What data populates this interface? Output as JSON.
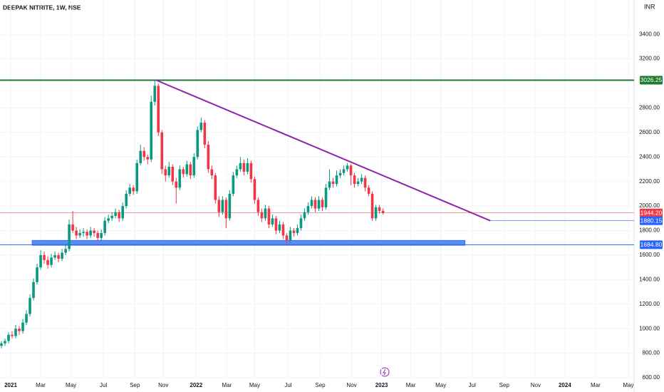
{
  "chart_data": {
    "type": "candlestick",
    "title": "DEEPAK NITRITE, 1W, NSE",
    "currency": "INR",
    "up_color": "#089981",
    "down_color": "#f23645",
    "xlim": [
      -0.4,
      177.4
    ],
    "ylim": [
      600,
      3680
    ],
    "xticks": [
      {
        "value": 2.6,
        "label": "2021"
      },
      {
        "value": 11,
        "label": "Mar"
      },
      {
        "value": 19.5,
        "label": "May"
      },
      {
        "value": 28.6,
        "label": "Jul"
      },
      {
        "value": 37.4,
        "label": "Sep"
      },
      {
        "value": 45.4,
        "label": "Nov"
      },
      {
        "value": 54.6,
        "label": "2022"
      },
      {
        "value": 63.2,
        "label": "Mar"
      },
      {
        "value": 71,
        "label": "May"
      },
      {
        "value": 80.4,
        "label": "Jul"
      },
      {
        "value": 89.4,
        "label": "Sep"
      },
      {
        "value": 98.2,
        "label": "Nov"
      },
      {
        "value": 106.6,
        "label": "2023"
      },
      {
        "value": 114.8,
        "label": "Mar"
      },
      {
        "value": 123.2,
        "label": "May"
      },
      {
        "value": 132,
        "label": "Jul"
      },
      {
        "value": 141,
        "label": "Sep"
      },
      {
        "value": 149.8,
        "label": "Nov"
      },
      {
        "value": 158,
        "label": "2024"
      },
      {
        "value": 166.6,
        "label": "Mar"
      },
      {
        "value": 175.8,
        "label": "May"
      }
    ],
    "yticks": [
      {
        "value": 600,
        "label": "600.00"
      },
      {
        "value": 800,
        "label": "800.00"
      },
      {
        "value": 1000,
        "label": "1000.00"
      },
      {
        "value": 1200,
        "label": "1200.00"
      },
      {
        "value": 1400,
        "label": "1400.00"
      },
      {
        "value": 1600,
        "label": "1600.00"
      },
      {
        "value": 1800,
        "label": "1800.00"
      },
      {
        "value": 2000,
        "label": "2000.00"
      },
      {
        "value": 2200,
        "label": "2200.00"
      },
      {
        "value": 2400,
        "label": "2400.00"
      },
      {
        "value": 2600,
        "label": "2600.00"
      },
      {
        "value": 2800,
        "label": "2800.00"
      },
      {
        "value": 3200,
        "label": "3200.00"
      },
      {
        "value": 3400,
        "label": "3400.00"
      }
    ],
    "ohlc": [
      [
        860,
        900,
        840,
        880
      ],
      [
        880,
        920,
        860,
        900
      ],
      [
        900,
        970,
        880,
        950
      ],
      [
        950,
        980,
        920,
        940
      ],
      [
        940,
        1030,
        920,
        1000
      ],
      [
        1000,
        1020,
        950,
        980
      ],
      [
        980,
        1080,
        960,
        1050
      ],
      [
        1050,
        1150,
        1030,
        1120
      ],
      [
        1120,
        1280,
        1100,
        1250
      ],
      [
        1250,
        1410,
        1230,
        1380
      ],
      [
        1380,
        1530,
        1360,
        1500
      ],
      [
        1500,
        1640,
        1480,
        1600
      ],
      [
        1600,
        1630,
        1530,
        1560
      ],
      [
        1560,
        1590,
        1490,
        1520
      ],
      [
        1520,
        1610,
        1500,
        1580
      ],
      [
        1580,
        1630,
        1560,
        1600
      ],
      [
        1600,
        1620,
        1540,
        1570
      ],
      [
        1570,
        1650,
        1550,
        1620
      ],
      [
        1620,
        1690,
        1600,
        1650
      ],
      [
        1650,
        1890,
        1630,
        1850
      ],
      [
        1850,
        1960,
        1780,
        1800
      ],
      [
        1800,
        1830,
        1730,
        1760
      ],
      [
        1760,
        1810,
        1740,
        1780
      ],
      [
        1780,
        1820,
        1750,
        1790
      ],
      [
        1790,
        1810,
        1730,
        1760
      ],
      [
        1760,
        1830,
        1740,
        1800
      ],
      [
        1800,
        1820,
        1750,
        1780
      ],
      [
        1780,
        1800,
        1710,
        1740
      ],
      [
        1740,
        1810,
        1720,
        1780
      ],
      [
        1780,
        1910,
        1760,
        1880
      ],
      [
        1880,
        1930,
        1860,
        1900
      ],
      [
        1900,
        1950,
        1880,
        1920
      ],
      [
        1920,
        1980,
        1900,
        1950
      ],
      [
        1950,
        1970,
        1870,
        1900
      ],
      [
        1900,
        2030,
        1880,
        2000
      ],
      [
        2000,
        2130,
        1980,
        2100
      ],
      [
        2100,
        2180,
        2080,
        2150
      ],
      [
        2150,
        2170,
        2090,
        2120
      ],
      [
        2120,
        2380,
        2100,
        2350
      ],
      [
        2350,
        2500,
        2330,
        2450
      ],
      [
        2450,
        2480,
        2370,
        2400
      ],
      [
        2400,
        2420,
        2340,
        2380
      ],
      [
        2380,
        2900,
        2360,
        2850
      ],
      [
        2850,
        3026.25,
        2820,
        2980
      ],
      [
        2980,
        3000,
        2570,
        2600
      ],
      [
        2600,
        2620,
        2260,
        2300
      ],
      [
        2300,
        2330,
        2200,
        2250
      ],
      [
        2250,
        2360,
        2230,
        2320
      ],
      [
        2320,
        2340,
        2170,
        2200
      ],
      [
        2200,
        2230,
        2020,
        2150
      ],
      [
        2150,
        2330,
        2130,
        2300
      ],
      [
        2300,
        2320,
        2230,
        2260
      ],
      [
        2260,
        2370,
        2240,
        2340
      ],
      [
        2340,
        2360,
        2220,
        2250
      ],
      [
        2250,
        2430,
        2230,
        2400
      ],
      [
        2400,
        2650,
        2380,
        2620
      ],
      [
        2620,
        2720,
        2600,
        2680
      ],
      [
        2680,
        2700,
        2470,
        2500
      ],
      [
        2500,
        2530,
        2270,
        2300
      ],
      [
        2300,
        2330,
        2220,
        2250
      ],
      [
        2250,
        2270,
        2020,
        2050
      ],
      [
        2050,
        2080,
        1910,
        1950
      ],
      [
        1950,
        2080,
        1930,
        2050
      ],
      [
        2050,
        2070,
        1820,
        1900
      ],
      [
        1900,
        2130,
        1880,
        2100
      ],
      [
        2100,
        2280,
        2080,
        2250
      ],
      [
        2250,
        2330,
        2230,
        2300
      ],
      [
        2300,
        2400,
        2280,
        2350
      ],
      [
        2350,
        2380,
        2250,
        2280
      ],
      [
        2280,
        2390,
        2260,
        2350
      ],
      [
        2350,
        2370,
        2190,
        2220
      ],
      [
        2220,
        2240,
        2020,
        2050
      ],
      [
        2050,
        2070,
        1920,
        1950
      ],
      [
        1950,
        1980,
        1870,
        1900
      ],
      [
        1900,
        2010,
        1880,
        1980
      ],
      [
        1980,
        2000,
        1820,
        1850
      ],
      [
        1850,
        1930,
        1830,
        1900
      ],
      [
        1900,
        1920,
        1770,
        1800
      ],
      [
        1800,
        1880,
        1780,
        1850
      ],
      [
        1850,
        1870,
        1730,
        1760
      ],
      [
        1760,
        1780,
        1690,
        1720
      ],
      [
        1720,
        1830,
        1700,
        1800
      ],
      [
        1800,
        1820,
        1750,
        1780
      ],
      [
        1780,
        1850,
        1760,
        1820
      ],
      [
        1820,
        1930,
        1800,
        1900
      ],
      [
        1900,
        1980,
        1880,
        1950
      ],
      [
        1950,
        2030,
        1930,
        2000
      ],
      [
        2000,
        2080,
        1980,
        2050
      ],
      [
        2050,
        2070,
        1950,
        1980
      ],
      [
        1980,
        2080,
        1960,
        2050
      ],
      [
        2050,
        2070,
        1960,
        1990
      ],
      [
        1990,
        2180,
        1970,
        2150
      ],
      [
        2150,
        2300,
        2130,
        2200
      ],
      [
        2200,
        2230,
        2150,
        2180
      ],
      [
        2180,
        2290,
        2160,
        2250
      ],
      [
        2250,
        2300,
        2230,
        2270
      ],
      [
        2270,
        2330,
        2250,
        2300
      ],
      [
        2300,
        2350,
        2280,
        2330
      ],
      [
        2330,
        2340,
        2170,
        2250
      ],
      [
        2250,
        2270,
        2150,
        2180
      ],
      [
        2180,
        2230,
        2160,
        2200
      ],
      [
        2200,
        2260,
        2180,
        2230
      ],
      [
        2230,
        2250,
        2120,
        2150
      ],
      [
        2150,
        2170,
        2080,
        2100
      ],
      [
        2100,
        2120,
        1880,
        1900
      ],
      [
        1900,
        2010,
        1880,
        1990
      ],
      [
        1990,
        2010,
        1940,
        1960
      ],
      [
        1960,
        1980,
        1930,
        1944.2
      ]
    ],
    "resistance": {
      "value": 3026.25,
      "label": "3026.25",
      "color": "#1e7b2e"
    },
    "trendline": {
      "points": [
        [
          43.4,
          3026.25
        ],
        [
          137.1,
          1880.15
        ]
      ],
      "color": "#8e24aa"
    },
    "trend_level": {
      "value": 1880.15,
      "label": "1880.15",
      "color": "#2962ff"
    },
    "last_price": {
      "value": 1944.2,
      "label": "1944.20",
      "color": "#f23645"
    },
    "support": {
      "value": 1684.8,
      "label": "1684.80",
      "color": "#2962ff"
    },
    "support_zone": {
      "from": 8.6,
      "to": 130,
      "top": 1720,
      "bottom": 1680,
      "color": "#5b8def"
    }
  }
}
